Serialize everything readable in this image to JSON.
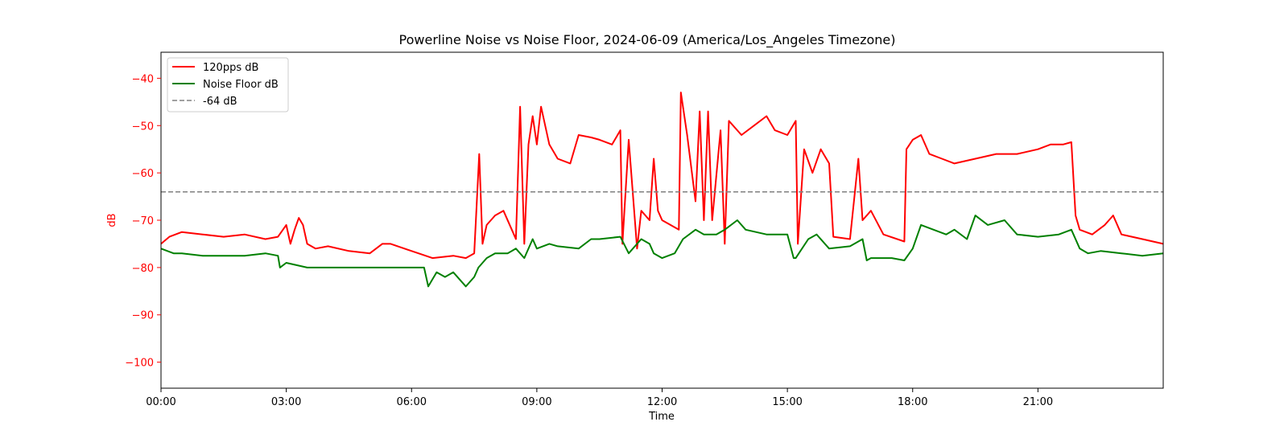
{
  "chart_data": {
    "type": "line",
    "title": "Powerline Noise vs Noise Floor, 2024-06-09 (America/Los_Angeles Timezone)",
    "xlabel": "Time",
    "ylabel": "dB",
    "xlim": [
      0,
      24
    ],
    "ylim": [
      -105.5,
      -34.5
    ],
    "x_ticks": [
      {
        "value": 0,
        "label": "00:00"
      },
      {
        "value": 3,
        "label": "03:00"
      },
      {
        "value": 6,
        "label": "06:00"
      },
      {
        "value": 9,
        "label": "09:00"
      },
      {
        "value": 12,
        "label": "12:00"
      },
      {
        "value": 15,
        "label": "15:00"
      },
      {
        "value": 18,
        "label": "18:00"
      },
      {
        "value": 21,
        "label": "21:00"
      }
    ],
    "y_ticks": [
      {
        "value": -40,
        "label": "−40"
      },
      {
        "value": -50,
        "label": "−50"
      },
      {
        "value": -60,
        "label": "−60"
      },
      {
        "value": -70,
        "label": "−70"
      },
      {
        "value": -80,
        "label": "−80"
      },
      {
        "value": -90,
        "label": "−90"
      },
      {
        "value": -100,
        "label": "−100"
      }
    ],
    "grid": false,
    "legend_position": "top-left",
    "colors": {
      "ylabel": "#ff0000",
      "y_ticks": "#ff0000"
    },
    "series": [
      {
        "name": "120pps dB",
        "color": "#ff0000",
        "style": "solid",
        "x": [
          0,
          0.2,
          0.5,
          1,
          1.5,
          2,
          2.5,
          2.8,
          3.0,
          3.1,
          3.2,
          3.3,
          3.4,
          3.5,
          3.7,
          4,
          4.5,
          5,
          5.3,
          5.5,
          6,
          6.5,
          7,
          7.3,
          7.5,
          7.62,
          7.7,
          7.8,
          8,
          8.2,
          8.4,
          8.5,
          8.6,
          8.7,
          8.8,
          8.9,
          9.0,
          9.1,
          9.3,
          9.5,
          9.8,
          10,
          10.3,
          10.5,
          10.8,
          11.0,
          11.05,
          11.2,
          11.4,
          11.5,
          11.7,
          11.8,
          11.9,
          12.0,
          12.2,
          12.4,
          12.45,
          12.6,
          12.8,
          12.9,
          13.0,
          13.1,
          13.2,
          13.4,
          13.5,
          13.6,
          13.9,
          14.2,
          14.5,
          14.7,
          15.0,
          15.2,
          15.25,
          15.4,
          15.6,
          15.8,
          16.0,
          16.1,
          16.5,
          16.7,
          16.8,
          17.0,
          17.3,
          17.8,
          17.85,
          18.0,
          18.2,
          18.4,
          18.7,
          19.0,
          19.5,
          20,
          20.5,
          21,
          21.3,
          21.6,
          21.8,
          21.9,
          22.0,
          22.3,
          22.6,
          22.8,
          23.0,
          23.5,
          24
        ],
        "y": [
          -75,
          -73.5,
          -72.5,
          -73,
          -73.5,
          -73,
          -74,
          -73.5,
          -71,
          -75,
          -72,
          -69.5,
          -71,
          -75,
          -76,
          -75.5,
          -76.5,
          -77,
          -75,
          -75,
          -76.5,
          -78,
          -77.5,
          -78,
          -77,
          -56,
          -75,
          -71,
          -69,
          -68,
          -72,
          -74,
          -46,
          -75,
          -54,
          -48,
          -54,
          -46,
          -54,
          -57,
          -58,
          -52,
          -52.5,
          -53,
          -54,
          -51,
          -75,
          -53,
          -76,
          -68,
          -70,
          -57,
          -68,
          -70,
          -71,
          -72,
          -43,
          -52,
          -66,
          -47,
          -70,
          -47,
          -70,
          -51,
          -75,
          -49,
          -52,
          -50,
          -48,
          -51,
          -52,
          -49,
          -75,
          -55,
          -60,
          -55,
          -58,
          -73.5,
          -74,
          -57,
          -70,
          -68,
          -73,
          -74.5,
          -55,
          -53,
          -52,
          -56,
          -57,
          -58,
          -57,
          -56,
          -56,
          -55,
          -54,
          -54,
          -53.5,
          -69,
          -72,
          -73,
          -71,
          -69,
          -73,
          -74,
          -75
        ]
      },
      {
        "name": "Noise Floor dB",
        "color": "#008000",
        "style": "solid",
        "x": [
          0,
          0.3,
          0.5,
          1,
          1.5,
          2,
          2.5,
          2.8,
          2.85,
          3,
          3.5,
          4,
          4.5,
          5,
          5.5,
          6,
          6.3,
          6.4,
          6.6,
          6.8,
          7,
          7.3,
          7.5,
          7.6,
          7.8,
          8,
          8.3,
          8.5,
          8.7,
          8.9,
          9,
          9.3,
          9.5,
          10,
          10.3,
          10.5,
          11,
          11.2,
          11.4,
          11.5,
          11.7,
          11.8,
          12,
          12.3,
          12.5,
          12.8,
          13,
          13.3,
          13.5,
          13.8,
          14,
          14.5,
          15,
          15.15,
          15.2,
          15.5,
          15.7,
          16,
          16.5,
          16.8,
          16.9,
          17.0,
          17.5,
          17.8,
          18,
          18.2,
          18.5,
          18.8,
          19,
          19.3,
          19.5,
          19.8,
          20.2,
          20.5,
          21,
          21.5,
          21.8,
          22,
          22.2,
          22.5,
          23,
          23.5,
          24
        ],
        "y": [
          -76,
          -77,
          -77,
          -77.5,
          -77.5,
          -77.5,
          -77,
          -77.5,
          -80,
          -79,
          -80,
          -80,
          -80,
          -80,
          -80,
          -80,
          -80,
          -84,
          -81,
          -82,
          -81,
          -84,
          -82,
          -80,
          -78,
          -77,
          -77,
          -76,
          -78,
          -74,
          -76,
          -75,
          -75.5,
          -76,
          -74,
          -74,
          -73.5,
          -77,
          -75,
          -74,
          -75,
          -77,
          -78,
          -77,
          -74,
          -72,
          -73,
          -73,
          -72,
          -70,
          -72,
          -73,
          -73,
          -78,
          -78,
          -74,
          -73,
          -76,
          -75.5,
          -74,
          -78.5,
          -78,
          -78,
          -78.5,
          -76,
          -71,
          -72,
          -73,
          -72,
          -74,
          -69,
          -71,
          -70,
          -73,
          -73.5,
          -73,
          -72,
          -76,
          -77,
          -76.5,
          -77,
          -77.5,
          -77
        ]
      },
      {
        "name": "-64 dB",
        "color": "#808080",
        "style": "dashed",
        "x": [
          0,
          24
        ],
        "y": [
          -64,
          -64
        ]
      }
    ]
  }
}
